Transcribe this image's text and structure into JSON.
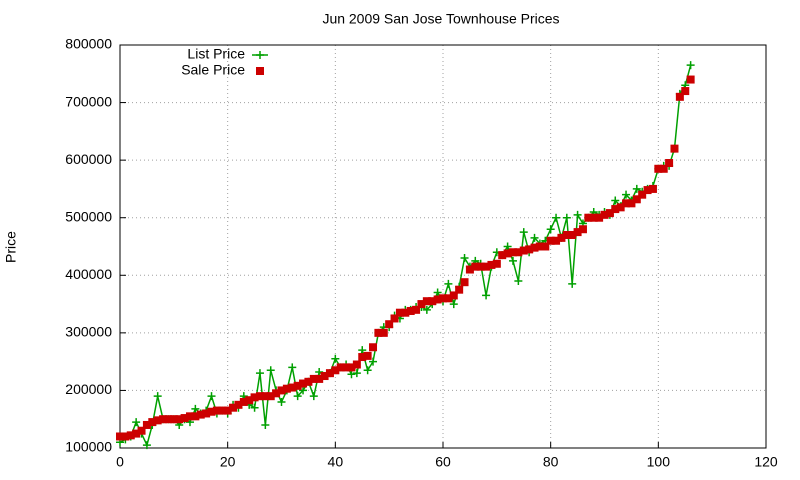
{
  "chart_data": {
    "type": "line",
    "title": "Jun 2009 San Jose Townhouse Prices",
    "y_label": "Price",
    "x": [
      0,
      1,
      2,
      3,
      4,
      5,
      6,
      7,
      8,
      9,
      10,
      11,
      12,
      13,
      14,
      15,
      16,
      17,
      18,
      19,
      20,
      21,
      22,
      23,
      24,
      25,
      26,
      27,
      28,
      29,
      30,
      31,
      32,
      33,
      34,
      35,
      36,
      37,
      38,
      39,
      40,
      41,
      42,
      43,
      44,
      45,
      46,
      47,
      48,
      49,
      50,
      51,
      52,
      53,
      54,
      55,
      56,
      57,
      58,
      59,
      60,
      61,
      62,
      63,
      64,
      65,
      66,
      67,
      68,
      69,
      70,
      71,
      72,
      73,
      74,
      75,
      76,
      77,
      78,
      79,
      80,
      81,
      82,
      83,
      84,
      85,
      86,
      87,
      88,
      89,
      90,
      91,
      92,
      93,
      94,
      95,
      96,
      97,
      98,
      99,
      100,
      101,
      102,
      103,
      104,
      105,
      106
    ],
    "series": [
      {
        "name": "List Price",
        "color": "#00a000",
        "mode": "linespoints",
        "marker": "plus",
        "values": [
          110000,
          115000,
          120000,
          145000,
          125000,
          105000,
          140000,
          190000,
          150000,
          150000,
          150000,
          140000,
          150000,
          145000,
          168000,
          160000,
          165000,
          190000,
          160000,
          165000,
          160000,
          175000,
          170000,
          190000,
          175000,
          170000,
          230000,
          140000,
          235000,
          200000,
          180000,
          200000,
          240000,
          190000,
          200000,
          215000,
          190000,
          232000,
          225000,
          230000,
          255000,
          240000,
          245000,
          228000,
          230000,
          270000,
          235000,
          250000,
          300000,
          310000,
          310000,
          330000,
          325000,
          340000,
          340000,
          345000,
          345000,
          340000,
          350000,
          370000,
          355000,
          385000,
          350000,
          380000,
          430000,
          415000,
          425000,
          420000,
          365000,
          415000,
          440000,
          435000,
          450000,
          425000,
          390000,
          475000,
          440000,
          465000,
          455000,
          460000,
          480000,
          500000,
          465000,
          500000,
          385000,
          505000,
          490000,
          500000,
          510000,
          505000,
          510000,
          505000,
          530000,
          520000,
          540000,
          530000,
          550000,
          545000,
          550000,
          555000,
          585000,
          590000,
          590000,
          620000,
          715000,
          730000,
          765000
        ]
      },
      {
        "name": "Sale Price",
        "color": "#cc0000",
        "mode": "points",
        "marker": "square",
        "values": [
          120000,
          120000,
          122000,
          125000,
          130000,
          140000,
          145000,
          148000,
          150000,
          150000,
          150000,
          150000,
          152000,
          155000,
          155000,
          158000,
          160000,
          163000,
          165000,
          165000,
          165000,
          170000,
          175000,
          180000,
          183000,
          188000,
          190000,
          190000,
          190000,
          195000,
          200000,
          203000,
          205000,
          208000,
          212000,
          215000,
          220000,
          220000,
          225000,
          230000,
          235000,
          240000,
          240000,
          240000,
          245000,
          258000,
          260000,
          275000,
          300000,
          300000,
          315000,
          325000,
          335000,
          335000,
          338000,
          340000,
          350000,
          355000,
          355000,
          358000,
          360000,
          360000,
          365000,
          375000,
          388000,
          410000,
          415000,
          415000,
          415000,
          418000,
          420000,
          435000,
          438000,
          440000,
          440000,
          443000,
          445000,
          448000,
          450000,
          450000,
          460000,
          460000,
          465000,
          470000,
          470000,
          475000,
          480000,
          500000,
          500000,
          500000,
          505000,
          508000,
          515000,
          518000,
          525000,
          525000,
          532000,
          540000,
          548000,
          550000,
          585000,
          585000,
          595000,
          620000,
          710000,
          720000,
          740000
        ]
      }
    ],
    "xlim": [
      0,
      120
    ],
    "xticks": [
      0,
      20,
      40,
      60,
      80,
      100,
      120
    ],
    "ylim": [
      100000,
      800000
    ],
    "yticks": [
      100000,
      200000,
      300000,
      400000,
      500000,
      600000,
      700000,
      800000
    ],
    "grid": true,
    "legend": "top-left"
  }
}
